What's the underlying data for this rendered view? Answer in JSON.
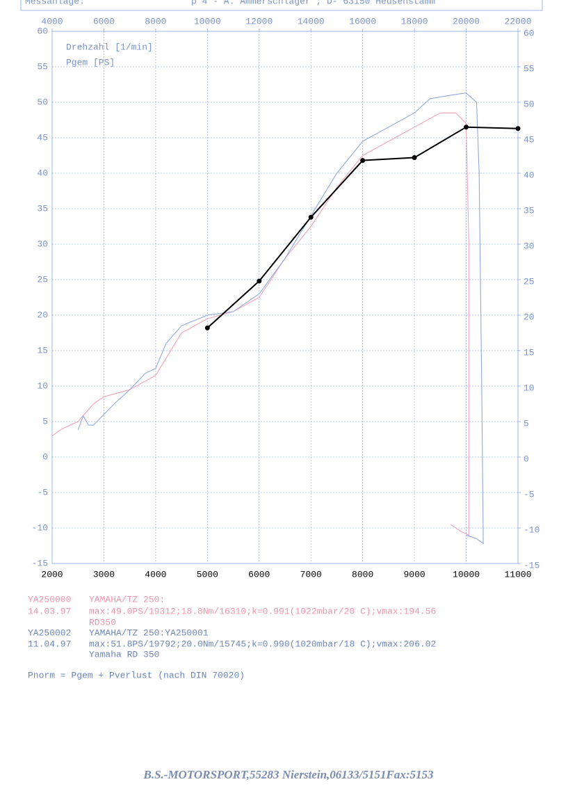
{
  "header": {
    "left": "Messanlage:",
    "right": "p 4  -  A. Ammerschläger ;  D- 63150 Heusenstamm"
  },
  "chart_data": {
    "type": "line",
    "xlabel": "Drehzahl [1/min]",
    "ylabel": "Pgem [PS]",
    "xlim": [
      2000,
      11000
    ],
    "xticks": [
      2000,
      3000,
      4000,
      5000,
      6000,
      7000,
      8000,
      9000,
      10000,
      11000
    ],
    "x2lim": [
      4000,
      22000
    ],
    "x2ticks": [
      4000,
      6000,
      8000,
      10000,
      12000,
      14000,
      16000,
      18000,
      20000,
      22000
    ],
    "ylim": [
      -15,
      60
    ],
    "yticks": [
      -15,
      -10,
      -5,
      0,
      5,
      10,
      15,
      20,
      25,
      30,
      35,
      40,
      45,
      50,
      55,
      60
    ],
    "y2lim": [
      -15,
      60
    ],
    "y2ticks": [
      -15,
      -10,
      -5,
      0,
      5,
      10,
      15,
      20,
      25,
      30,
      35,
      40,
      45,
      50,
      55,
      60
    ],
    "grid": true,
    "series": [
      {
        "color": "#f2a3b3",
        "markers": false,
        "x": [
          2000,
          2200,
          2500,
          2800,
          3000,
          3500,
          4000,
          4500,
          5000,
          5500,
          6000,
          6500,
          7000,
          7500,
          8000,
          8500,
          9000,
          9500,
          9800,
          10000,
          10050,
          10050,
          9900,
          9700
        ],
        "values": [
          3,
          4,
          5,
          7.5,
          8.5,
          9.5,
          11.5,
          17.5,
          19.5,
          20.5,
          22.5,
          28,
          32.5,
          38,
          42.5,
          44.5,
          46.5,
          48.5,
          48.5,
          47,
          30,
          -11,
          -10.5,
          -9.5
        ]
      },
      {
        "color": "#8fa9df",
        "markers": false,
        "x": [
          2500,
          2600,
          2700,
          2800,
          3000,
          3200,
          3500,
          3800,
          4000,
          4200,
          4500,
          5000,
          5500,
          6000,
          6500,
          7000,
          7500,
          8000,
          8500,
          9000,
          9300,
          9700,
          10000,
          10200,
          10250,
          10300,
          10330,
          10200,
          10000
        ],
        "values": [
          3.8,
          5.8,
          4.5,
          4.5,
          6,
          7.5,
          9.5,
          11.8,
          12.5,
          16,
          18.5,
          20,
          20.5,
          23,
          28,
          34,
          40,
          44.5,
          46.5,
          48.5,
          50.5,
          51,
          51.3,
          50,
          40,
          10,
          -12.2,
          -11.5,
          -11
        ]
      },
      {
        "color": "#000000",
        "markers": true,
        "x": [
          5000,
          6000,
          7000,
          8000,
          9000,
          10000,
          11000
        ],
        "values": [
          18.2,
          24.8,
          33.8,
          41.8,
          42.2,
          46.5,
          46.3
        ]
      }
    ]
  },
  "records": [
    {
      "id": "YA250000",
      "vehicle": "YAMAHA/TZ   250:",
      "date": "14.03.97",
      "max": "max:49.0PS/19312;18.8Nm/16310;k=0.991(1022mbar/20 C);vmax:194.56",
      "note": "RD350"
    },
    {
      "id": "YA250002",
      "vehicle": "YAMAHA/TZ   250:YA250001",
      "date": "11.04.97",
      "max": "max:51.8PS/19792;20.0Nm/15745;k=0.990(1020mbar/18 C);vmax:206.02",
      "note": "Yamaha RD 350"
    }
  ],
  "formula": "Pnorm = Pgem + Pverlust (nach DIN 70020)",
  "footer": "B.S.-MOTORSPORT,55283 Nierstein,06133/5151Fax:5153"
}
